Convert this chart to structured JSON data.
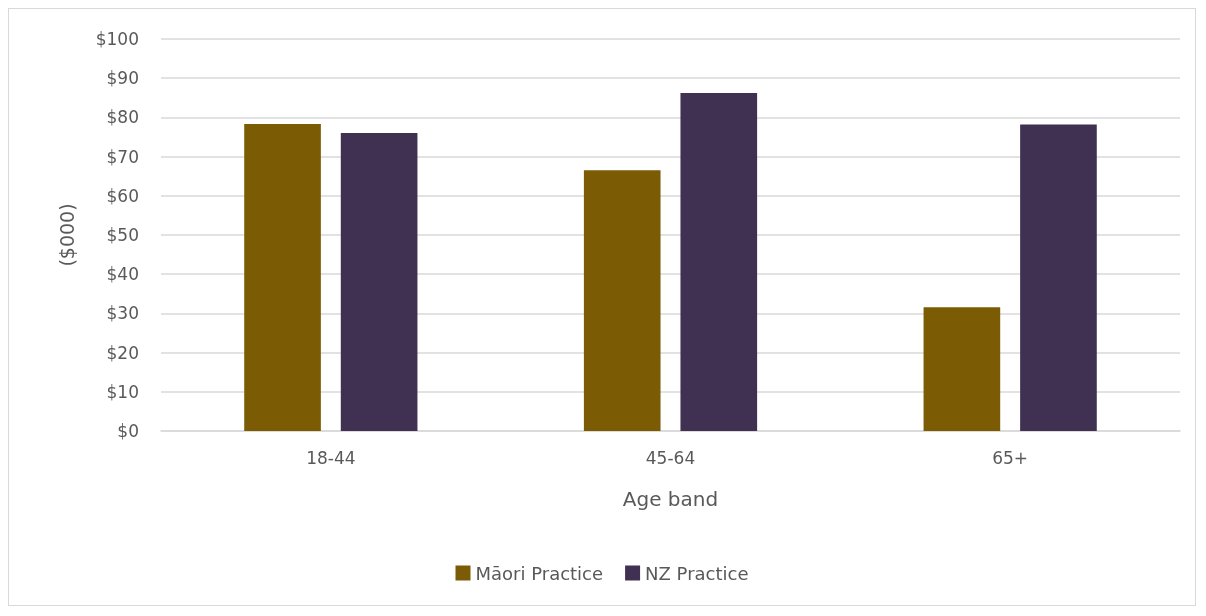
{
  "chart_data": {
    "type": "bar",
    "xlabel": "Age band",
    "ylabel": "($000)",
    "categories": [
      "18-44",
      "45-64",
      "65+"
    ],
    "series": [
      {
        "name": "Māori Practice",
        "color": "#7b5c05",
        "values": [
          78.3,
          66.5,
          31.6
        ]
      },
      {
        "name": "NZ Practice",
        "color": "#403152",
        "values": [
          76.0,
          86.2,
          78.2
        ]
      }
    ],
    "ylim": [
      0,
      100
    ],
    "yticks": [
      {
        "value": 0,
        "label": "$0"
      },
      {
        "value": 10,
        "label": "$10"
      },
      {
        "value": 20,
        "label": "$20"
      },
      {
        "value": 30,
        "label": "$30"
      },
      {
        "value": 40,
        "label": "$40"
      },
      {
        "value": 50,
        "label": "$50"
      },
      {
        "value": 60,
        "label": "$60"
      },
      {
        "value": 70,
        "label": "$70"
      },
      {
        "value": 80,
        "label": "$80"
      },
      {
        "value": 90,
        "label": "$90"
      },
      {
        "value": 100,
        "label": "$100"
      }
    ],
    "grid": "y",
    "legend": "bottom"
  }
}
